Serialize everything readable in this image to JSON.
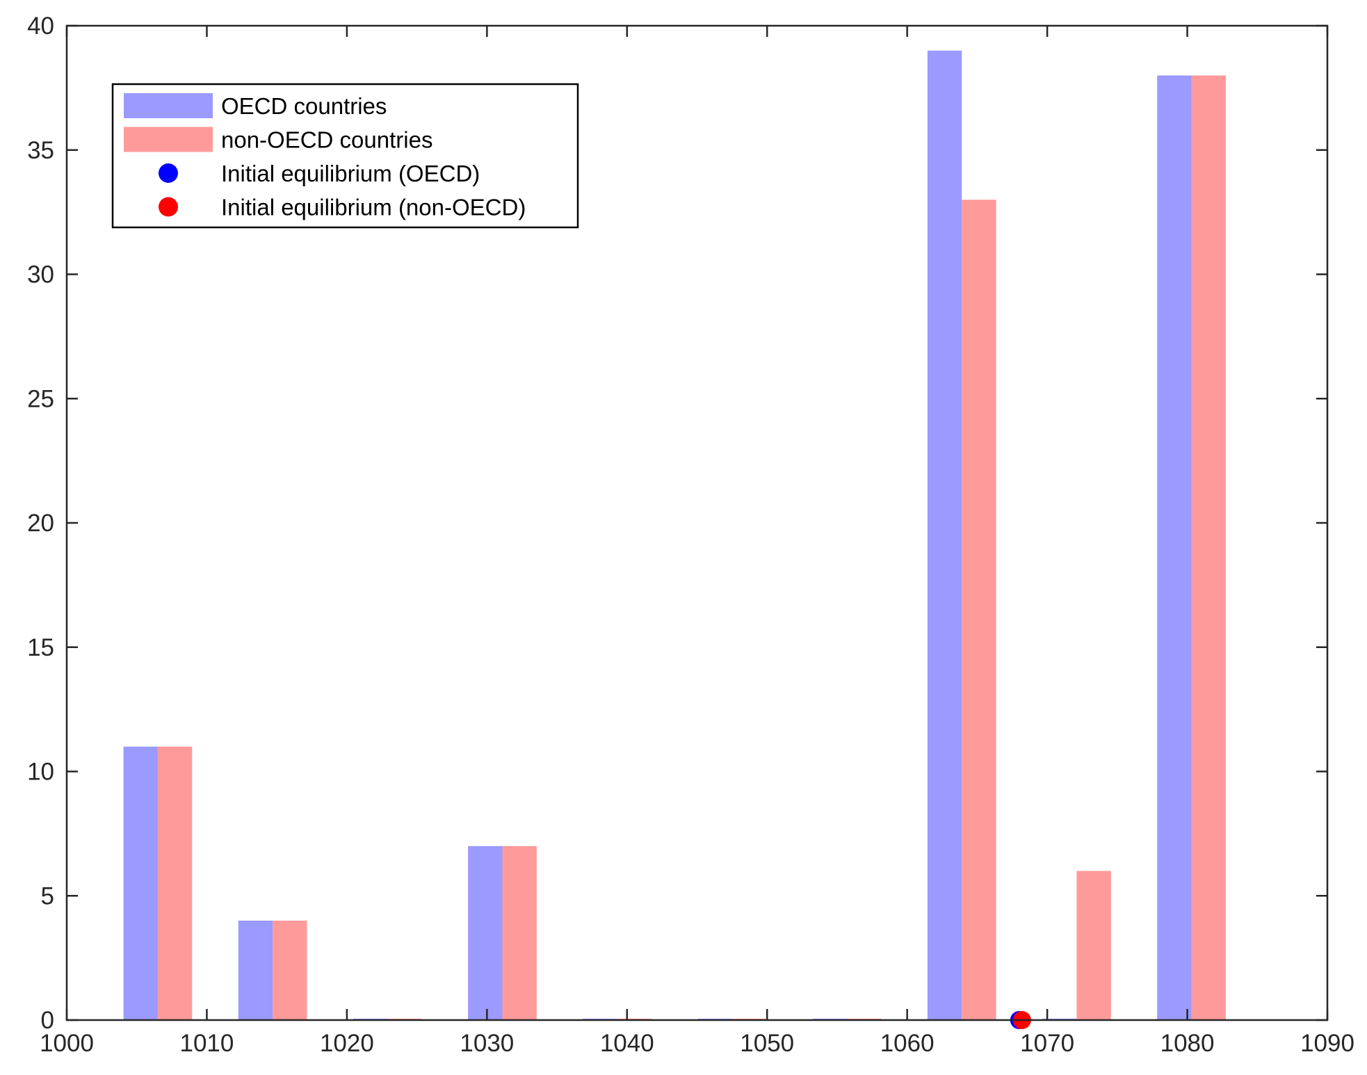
{
  "chart_data": {
    "type": "bar",
    "title": "",
    "xlabel": "",
    "ylabel": "",
    "xlim": [
      1000,
      1090
    ],
    "ylim": [
      0,
      40
    ],
    "xticks": [
      1000,
      1010,
      1020,
      1030,
      1040,
      1050,
      1060,
      1070,
      1080,
      1090
    ],
    "yticks": [
      0,
      5,
      10,
      15,
      20,
      25,
      30,
      35,
      40
    ],
    "grid": false,
    "legend_position": "top-left",
    "categories": [
      1006.5,
      1014.7,
      1022.9,
      1031.1,
      1039.3,
      1047.5,
      1055.7,
      1063.9,
      1072.1,
      1080.3
    ],
    "series": [
      {
        "name": "OECD countries",
        "color": "#9a9aff",
        "values": [
          11,
          4,
          0,
          7,
          0,
          0,
          0,
          39,
          0,
          38
        ]
      },
      {
        "name": "non-OECD countries",
        "color": "#ff9a9a",
        "values": [
          11,
          4,
          0,
          7,
          0,
          0,
          0,
          33,
          6,
          38
        ]
      }
    ],
    "points": [
      {
        "name": "Initial equilibrium (OECD)",
        "color": "#0000ff",
        "x": 1068,
        "y": 0
      },
      {
        "name": "Initial equilibrium (non-OECD)",
        "color": "#ff0000",
        "x": 1068.2,
        "y": 0
      }
    ]
  }
}
